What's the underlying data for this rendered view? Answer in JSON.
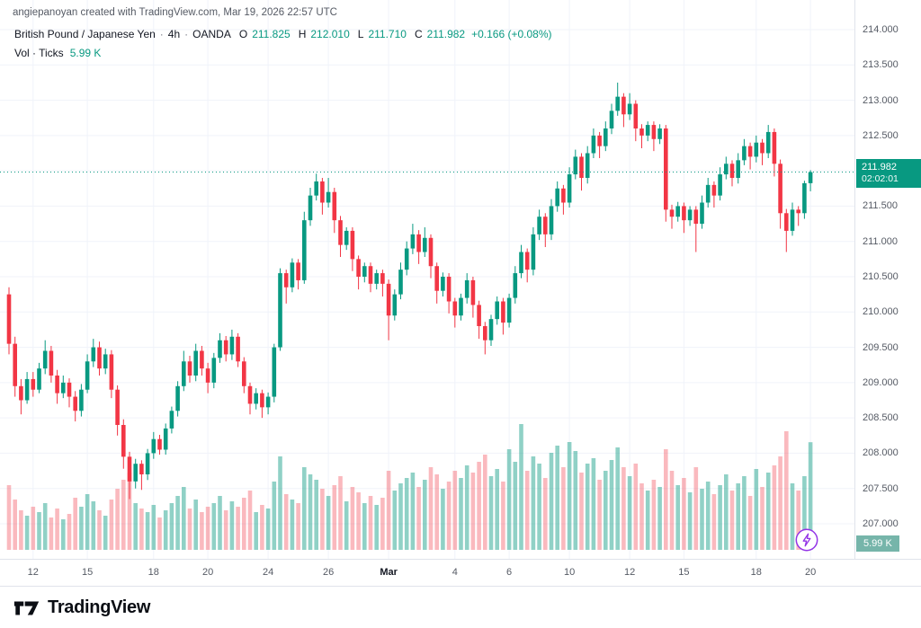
{
  "watermark": "angiepanoyan created with TradingView.com, Mar 19, 2026 22:57 UTC",
  "legend": {
    "symbol": "British Pound / Japanese Yen",
    "separator": "·",
    "interval": "4h",
    "exchange": "OANDA",
    "ohlc": {
      "o_label": "O",
      "o": "211.825",
      "h_label": "H",
      "h": "212.010",
      "l_label": "L",
      "l": "211.710",
      "c_label": "C",
      "c": "211.982",
      "change": "+0.166 (+0.08%)"
    },
    "volume_label": "Vol · Ticks",
    "volume_value": "5.99 K"
  },
  "price_axis": {
    "labels": [
      "214.000",
      "213.500",
      "213.000",
      "212.500",
      "212.000",
      "211.500",
      "211.000",
      "210.500",
      "210.000",
      "209.500",
      "209.000",
      "208.500",
      "208.000",
      "207.500",
      "207.000"
    ],
    "current_price": "211.982",
    "countdown": "02:02:01",
    "volume_badge": "5.99 K"
  },
  "time_axis": {
    "ticks": [
      {
        "label": "12",
        "i": 4
      },
      {
        "label": "15",
        "i": 13
      },
      {
        "label": "18",
        "i": 24
      },
      {
        "label": "20",
        "i": 33
      },
      {
        "label": "24",
        "i": 43
      },
      {
        "label": "26",
        "i": 53
      },
      {
        "label": "Mar",
        "i": 63,
        "major": true
      },
      {
        "label": "4",
        "i": 74
      },
      {
        "label": "6",
        "i": 83
      },
      {
        "label": "10",
        "i": 93
      },
      {
        "label": "12",
        "i": 103
      },
      {
        "label": "15",
        "i": 112
      },
      {
        "label": "18",
        "i": 124
      },
      {
        "label": "20",
        "i": 133
      }
    ]
  },
  "footer": {
    "brand": "TradingView"
  },
  "colors": {
    "up": "#089981",
    "down": "#f23645",
    "vol_up": "rgba(8,153,129,0.45)",
    "vol_down": "rgba(242,54,69,0.35)",
    "grid": "#f0f3fa",
    "badge_bg": "#089981",
    "volume_badge_bg": "#76b5aa",
    "purple": "#9334e6",
    "axis_text": "#555a64"
  },
  "chart_data": {
    "type": "candlestick",
    "title": "British Pound / Japanese Yen · 4h · OANDA",
    "volume_unit": "Ticks",
    "price_range": [
      207.0,
      214.0
    ],
    "last": {
      "open": 211.825,
      "high": 212.01,
      "low": 211.71,
      "close": 211.982,
      "change": "+0.166 (+0.08%)",
      "volume_display": "5.99 K"
    },
    "candles": [
      [
        210.25,
        210.35,
        209.4,
        209.55
      ],
      [
        209.55,
        209.65,
        208.8,
        208.95
      ],
      [
        208.95,
        209.05,
        208.55,
        208.75
      ],
      [
        208.75,
        209.15,
        208.7,
        209.05
      ],
      [
        209.05,
        209.15,
        208.8,
        208.9
      ],
      [
        208.9,
        209.28,
        208.85,
        209.2
      ],
      [
        209.2,
        209.6,
        209.12,
        209.45
      ],
      [
        209.45,
        209.52,
        209.0,
        209.1
      ],
      [
        209.1,
        209.18,
        208.7,
        208.85
      ],
      [
        208.85,
        209.1,
        208.78,
        209.0
      ],
      [
        209.0,
        209.06,
        208.65,
        208.8
      ],
      [
        208.8,
        208.88,
        208.45,
        208.6
      ],
      [
        208.6,
        208.98,
        208.52,
        208.9
      ],
      [
        208.9,
        209.4,
        208.85,
        209.3
      ],
      [
        209.3,
        209.62,
        209.22,
        209.5
      ],
      [
        209.5,
        209.58,
        209.1,
        209.2
      ],
      [
        209.2,
        209.48,
        209.12,
        209.4
      ],
      [
        209.4,
        209.46,
        208.78,
        208.9
      ],
      [
        208.9,
        208.96,
        208.25,
        208.4
      ],
      [
        208.4,
        208.48,
        207.78,
        207.95
      ],
      [
        207.95,
        208.02,
        207.35,
        207.6
      ],
      [
        207.6,
        207.92,
        207.5,
        207.85
      ],
      [
        207.85,
        207.9,
        207.48,
        207.7
      ],
      [
        207.7,
        208.06,
        207.62,
        208.0
      ],
      [
        208.0,
        208.3,
        207.92,
        208.2
      ],
      [
        208.2,
        208.26,
        207.98,
        208.05
      ],
      [
        208.05,
        208.42,
        207.98,
        208.35
      ],
      [
        208.35,
        208.66,
        208.28,
        208.6
      ],
      [
        208.6,
        209.02,
        208.52,
        208.95
      ],
      [
        208.95,
        209.45,
        208.88,
        209.3
      ],
      [
        209.3,
        209.38,
        209.0,
        209.1
      ],
      [
        209.1,
        209.55,
        209.02,
        209.45
      ],
      [
        209.45,
        209.52,
        209.1,
        209.2
      ],
      [
        209.2,
        209.28,
        208.85,
        209.0
      ],
      [
        209.0,
        209.42,
        208.92,
        209.35
      ],
      [
        209.35,
        209.7,
        209.28,
        209.6
      ],
      [
        209.6,
        209.66,
        209.3,
        209.4
      ],
      [
        209.4,
        209.75,
        209.32,
        209.65
      ],
      [
        209.65,
        209.7,
        209.22,
        209.3
      ],
      [
        209.3,
        209.36,
        208.85,
        208.95
      ],
      [
        208.95,
        209.0,
        208.55,
        208.7
      ],
      [
        208.7,
        208.92,
        208.62,
        208.85
      ],
      [
        208.85,
        208.9,
        208.5,
        208.65
      ],
      [
        208.65,
        208.86,
        208.55,
        208.8
      ],
      [
        208.8,
        209.55,
        208.72,
        209.5
      ],
      [
        209.5,
        210.62,
        209.45,
        210.55
      ],
      [
        210.55,
        210.6,
        210.12,
        210.35
      ],
      [
        210.35,
        210.76,
        210.28,
        210.7
      ],
      [
        210.7,
        210.75,
        210.32,
        210.45
      ],
      [
        210.45,
        211.42,
        210.4,
        211.3
      ],
      [
        211.3,
        211.76,
        211.22,
        211.65
      ],
      [
        211.65,
        211.96,
        211.58,
        211.85
      ],
      [
        211.85,
        211.9,
        211.38,
        211.55
      ],
      [
        211.55,
        211.9,
        211.48,
        211.7
      ],
      [
        211.7,
        211.76,
        211.12,
        211.3
      ],
      [
        211.3,
        211.36,
        210.78,
        210.95
      ],
      [
        210.95,
        211.2,
        210.88,
        211.15
      ],
      [
        211.15,
        211.2,
        210.58,
        210.75
      ],
      [
        210.75,
        210.8,
        210.32,
        210.5
      ],
      [
        210.5,
        210.7,
        210.42,
        210.65
      ],
      [
        210.65,
        210.7,
        210.28,
        210.4
      ],
      [
        210.4,
        210.6,
        210.32,
        210.55
      ],
      [
        210.55,
        210.6,
        210.22,
        210.4
      ],
      [
        210.4,
        210.46,
        209.6,
        209.95
      ],
      [
        209.95,
        210.32,
        209.88,
        210.25
      ],
      [
        210.25,
        210.7,
        210.18,
        210.6
      ],
      [
        210.6,
        211.0,
        210.52,
        210.9
      ],
      [
        210.9,
        211.25,
        210.82,
        211.1
      ],
      [
        211.1,
        211.16,
        210.68,
        210.85
      ],
      [
        210.85,
        211.2,
        210.78,
        211.05
      ],
      [
        211.05,
        211.1,
        210.48,
        210.65
      ],
      [
        210.65,
        210.7,
        210.12,
        210.3
      ],
      [
        210.3,
        210.56,
        210.22,
        210.5
      ],
      [
        210.5,
        210.55,
        209.98,
        210.15
      ],
      [
        210.15,
        210.2,
        209.78,
        209.95
      ],
      [
        209.95,
        210.26,
        209.88,
        210.2
      ],
      [
        210.2,
        210.55,
        210.12,
        210.45
      ],
      [
        210.45,
        210.5,
        209.92,
        210.1
      ],
      [
        210.1,
        210.16,
        209.62,
        209.8
      ],
      [
        209.8,
        209.86,
        209.4,
        209.6
      ],
      [
        209.6,
        209.96,
        209.52,
        209.9
      ],
      [
        209.9,
        210.22,
        209.82,
        210.15
      ],
      [
        210.15,
        210.2,
        209.68,
        209.85
      ],
      [
        209.85,
        210.26,
        209.78,
        210.2
      ],
      [
        210.2,
        210.65,
        210.12,
        210.55
      ],
      [
        210.55,
        210.95,
        210.48,
        210.85
      ],
      [
        210.85,
        210.9,
        210.42,
        210.6
      ],
      [
        210.6,
        211.2,
        210.52,
        211.1
      ],
      [
        211.1,
        211.45,
        211.02,
        211.35
      ],
      [
        211.35,
        211.4,
        210.92,
        211.1
      ],
      [
        211.1,
        211.6,
        211.02,
        211.5
      ],
      [
        211.5,
        211.85,
        211.42,
        211.75
      ],
      [
        211.75,
        211.8,
        211.38,
        211.55
      ],
      [
        211.55,
        212.05,
        211.48,
        211.95
      ],
      [
        211.95,
        212.3,
        211.88,
        212.2
      ],
      [
        212.2,
        212.25,
        211.72,
        211.9
      ],
      [
        211.9,
        212.35,
        211.82,
        212.25
      ],
      [
        212.25,
        212.6,
        212.18,
        212.5
      ],
      [
        212.5,
        212.55,
        212.18,
        212.35
      ],
      [
        212.35,
        212.7,
        212.28,
        212.6
      ],
      [
        212.6,
        212.95,
        212.52,
        212.85
      ],
      [
        212.85,
        213.25,
        212.78,
        213.05
      ],
      [
        213.05,
        213.1,
        212.62,
        212.8
      ],
      [
        212.8,
        213.1,
        212.72,
        212.95
      ],
      [
        212.95,
        213.0,
        212.42,
        212.6
      ],
      [
        212.6,
        212.66,
        212.32,
        212.5
      ],
      [
        212.5,
        212.7,
        212.42,
        212.65
      ],
      [
        212.65,
        212.7,
        212.28,
        212.45
      ],
      [
        212.45,
        212.66,
        212.38,
        212.6
      ],
      [
        212.6,
        212.65,
        211.28,
        211.45
      ],
      [
        211.45,
        211.52,
        211.18,
        211.35
      ],
      [
        211.35,
        211.56,
        211.28,
        211.5
      ],
      [
        211.5,
        211.55,
        211.12,
        211.3
      ],
      [
        211.3,
        211.5,
        211.22,
        211.45
      ],
      [
        211.45,
        211.5,
        210.85,
        211.25
      ],
      [
        211.25,
        211.65,
        211.18,
        211.55
      ],
      [
        211.55,
        211.9,
        211.48,
        211.8
      ],
      [
        211.8,
        211.85,
        211.48,
        211.65
      ],
      [
        211.65,
        212.05,
        211.58,
        211.95
      ],
      [
        211.95,
        212.2,
        211.88,
        212.1
      ],
      [
        212.1,
        212.15,
        211.78,
        211.9
      ],
      [
        211.9,
        212.25,
        211.82,
        212.15
      ],
      [
        212.15,
        212.45,
        212.08,
        212.35
      ],
      [
        212.35,
        212.4,
        212.02,
        212.2
      ],
      [
        212.2,
        212.5,
        212.12,
        212.4
      ],
      [
        212.4,
        212.45,
        212.08,
        212.25
      ],
      [
        212.25,
        212.65,
        212.18,
        212.55
      ],
      [
        212.55,
        212.6,
        211.92,
        212.1
      ],
      [
        212.1,
        212.16,
        211.18,
        211.4
      ],
      [
        211.4,
        211.46,
        210.85,
        211.15
      ],
      [
        211.15,
        211.55,
        211.08,
        211.45
      ],
      [
        211.45,
        211.5,
        211.22,
        211.4
      ],
      [
        211.4,
        211.86,
        211.32,
        211.825
      ],
      [
        211.825,
        212.01,
        211.71,
        211.982
      ]
    ],
    "volumes": [
      3600,
      2800,
      2200,
      1900,
      2400,
      2100,
      2600,
      1800,
      2300,
      1700,
      2000,
      2900,
      2400,
      3100,
      2700,
      2200,
      1900,
      2800,
      3400,
      3900,
      4300,
      2600,
      2300,
      2100,
      2500,
      1800,
      2200,
      2600,
      3000,
      3500,
      2300,
      2800,
      2100,
      2400,
      2600,
      3000,
      2200,
      2700,
      2400,
      2900,
      3300,
      2100,
      2500,
      2300,
      3800,
      5200,
      3100,
      2800,
      2600,
      4600,
      4200,
      3900,
      3400,
      3000,
      3600,
      4100,
      2700,
      3500,
      3200,
      2600,
      3000,
      2500,
      2900,
      4400,
      3300,
      3700,
      4000,
      4300,
      3500,
      3900,
      4600,
      4200,
      3400,
      3800,
      4400,
      4000,
      4700,
      4300,
      4900,
      5300,
      4100,
      4500,
      3800,
      5600,
      4900,
      7000,
      4400,
      5200,
      4800,
      4000,
      5400,
      5800,
      4600,
      6000,
      5500,
      4300,
      4800,
      5100,
      3900,
      4400,
      5000,
      5700,
      4600,
      4100,
      4800,
      3700,
      3300,
      3900,
      3500,
      5600,
      4400,
      3600,
      4000,
      3200,
      4600,
      3400,
      3800,
      3100,
      3600,
      4200,
      3300,
      3700,
      4100,
      3000,
      4500,
      3500,
      4300,
      4700,
      5200,
      6600,
      3700,
      3300,
      4100,
      5990
    ]
  }
}
